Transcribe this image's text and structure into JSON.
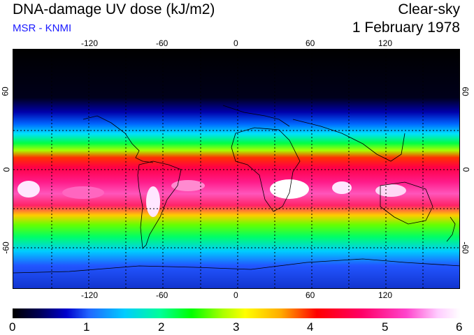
{
  "title": "DNA-damage UV dose (kJ/m2)",
  "subtitle": "MSR - KNMI",
  "sky_condition": "Clear-sky",
  "date": "1 February 1978",
  "map": {
    "lon_ticks": [
      "-120",
      "-60",
      "0",
      "60",
      "120"
    ],
    "lat_ticks": [
      "60",
      "0",
      "-60"
    ]
  },
  "colorbar": {
    "labels": [
      "0",
      "1",
      "2",
      "3",
      "4",
      "5",
      "6"
    ]
  },
  "colors": {
    "subtitle": "#1a1aff",
    "background": "#ffffff"
  }
}
